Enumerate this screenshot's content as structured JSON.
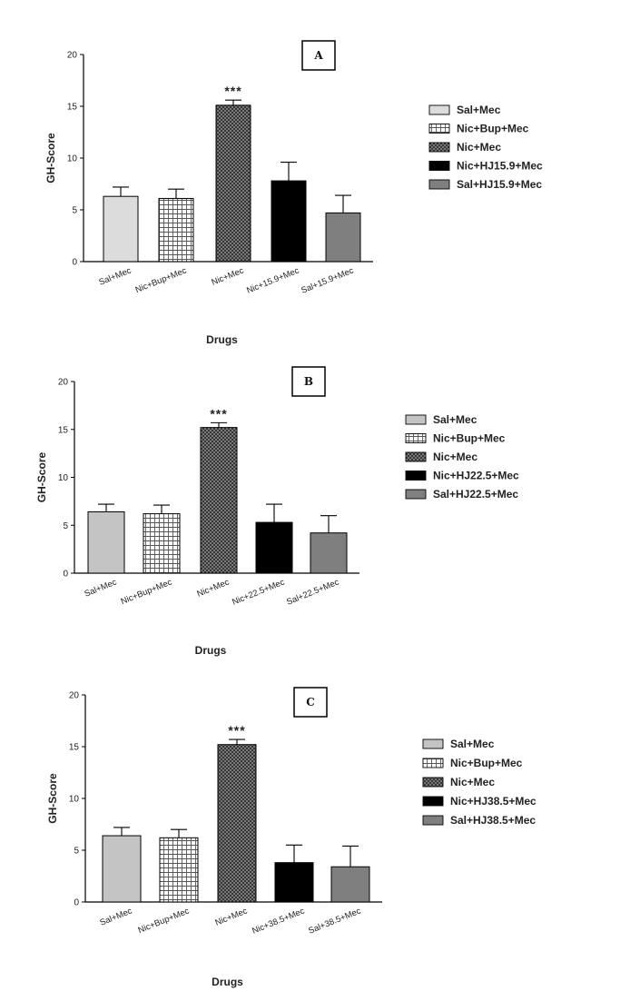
{
  "chart_data": [
    {
      "type": "bar",
      "panel_label": "A",
      "ylabel": "GH-Score",
      "xlabel": "Drugs",
      "ylim": [
        0,
        20
      ],
      "yticks": [
        0,
        5,
        10,
        15,
        20
      ],
      "categories": [
        "Sal+Mec",
        "Nic+Bup+Mec",
        "Nic+Mec",
        "Nic+15.9+Mec",
        "Sal+15.9+Mec"
      ],
      "values": [
        6.3,
        6.1,
        15.1,
        7.8,
        4.7
      ],
      "errors": [
        0.9,
        0.9,
        0.5,
        1.8,
        1.7
      ],
      "significance": [
        "",
        "",
        "***",
        "",
        ""
      ],
      "legend": [
        "Sal+Mec",
        "Nic+Bup+Mec",
        "Nic+Mec",
        "Nic+HJ15.9+Mec",
        "Sal+HJ15.9+Mec"
      ],
      "fills": [
        "light",
        "grid",
        "cross",
        "black",
        "gray"
      ],
      "grid": false,
      "legend_placement": "right"
    },
    {
      "type": "bar",
      "panel_label": "B",
      "ylabel": "GH-Score",
      "xlabel": "Drugs",
      "ylim": [
        0,
        20
      ],
      "yticks": [
        0,
        5,
        10,
        15,
        20
      ],
      "categories": [
        "Sal+Mec",
        "Nic+Bup+Mec",
        "Nic+Mec",
        "Nic+22.5+Mec",
        "Sal+22.5+Mec"
      ],
      "values": [
        6.4,
        6.2,
        15.2,
        5.3,
        4.2
      ],
      "errors": [
        0.8,
        0.9,
        0.5,
        1.9,
        1.8
      ],
      "significance": [
        "",
        "",
        "***",
        "",
        ""
      ],
      "legend": [
        "Sal+Mec",
        "Nic+Bup+Mec",
        "Nic+Mec",
        "Nic+HJ22.5+Mec",
        "Sal+HJ22.5+Mec"
      ],
      "fills": [
        "mid",
        "grid",
        "cross",
        "black",
        "gray"
      ],
      "grid": false,
      "legend_placement": "right"
    },
    {
      "type": "bar",
      "panel_label": "C",
      "ylabel": "GH-Score",
      "xlabel": "Drugs",
      "ylim": [
        0,
        20
      ],
      "yticks": [
        0,
        5,
        10,
        15,
        20
      ],
      "categories": [
        "Sal+Mec",
        "Nic+Bup+Mec",
        "Nic+Mec",
        "Nic+38.5+Mec",
        "Sal+38.5+Mec"
      ],
      "values": [
        6.4,
        6.2,
        15.2,
        3.8,
        3.4
      ],
      "errors": [
        0.8,
        0.8,
        0.5,
        1.7,
        2.0
      ],
      "significance": [
        "",
        "",
        "***",
        "",
        ""
      ],
      "legend": [
        "Sal+Mec",
        "Nic+Bup+Mec",
        "Nic+Mec",
        "Nic+HJ38.5+Mec",
        "Sal+HJ38.5+Mec"
      ],
      "fills": [
        "mid",
        "grid",
        "cross",
        "black",
        "gray"
      ],
      "grid": false,
      "legend_placement": "right"
    }
  ]
}
